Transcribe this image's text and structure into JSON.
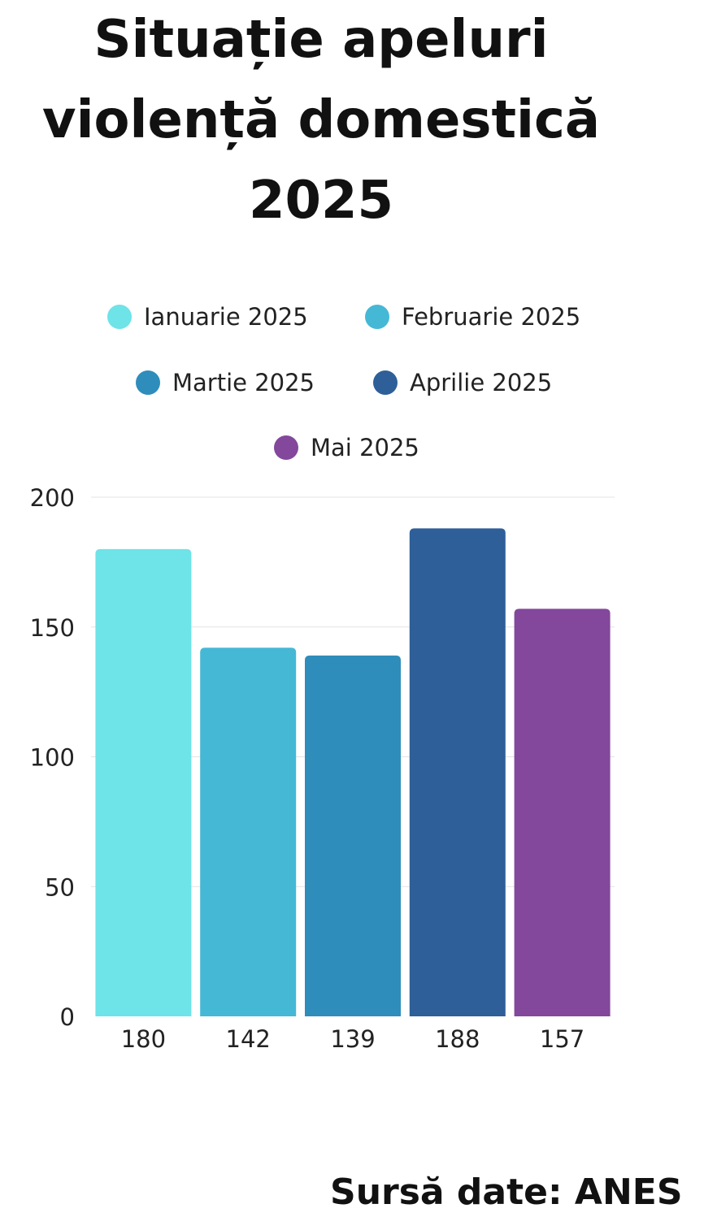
{
  "title_lines": [
    "Situație apeluri",
    "violență domestică",
    "2025"
  ],
  "source": "Sursă date: ANES",
  "chart_data": {
    "type": "bar",
    "title": "Situație apeluri violență domestică 2025",
    "categories": [
      "Ianuarie 2025",
      "Februarie 2025",
      "Martie 2025",
      "Aprilie 2025",
      "Mai 2025"
    ],
    "values": [
      180,
      142,
      139,
      188,
      157
    ],
    "colors": [
      "#6ee3e8",
      "#45b8d6",
      "#2e8dbb",
      "#2e5f98",
      "#83479b"
    ],
    "bar_labels": [
      "180",
      "142",
      "139",
      "188",
      "157"
    ],
    "y_ticks": [
      0,
      50,
      100,
      150,
      200
    ],
    "ylim": [
      0,
      200
    ],
    "grid": true,
    "legend_placement": "top"
  }
}
